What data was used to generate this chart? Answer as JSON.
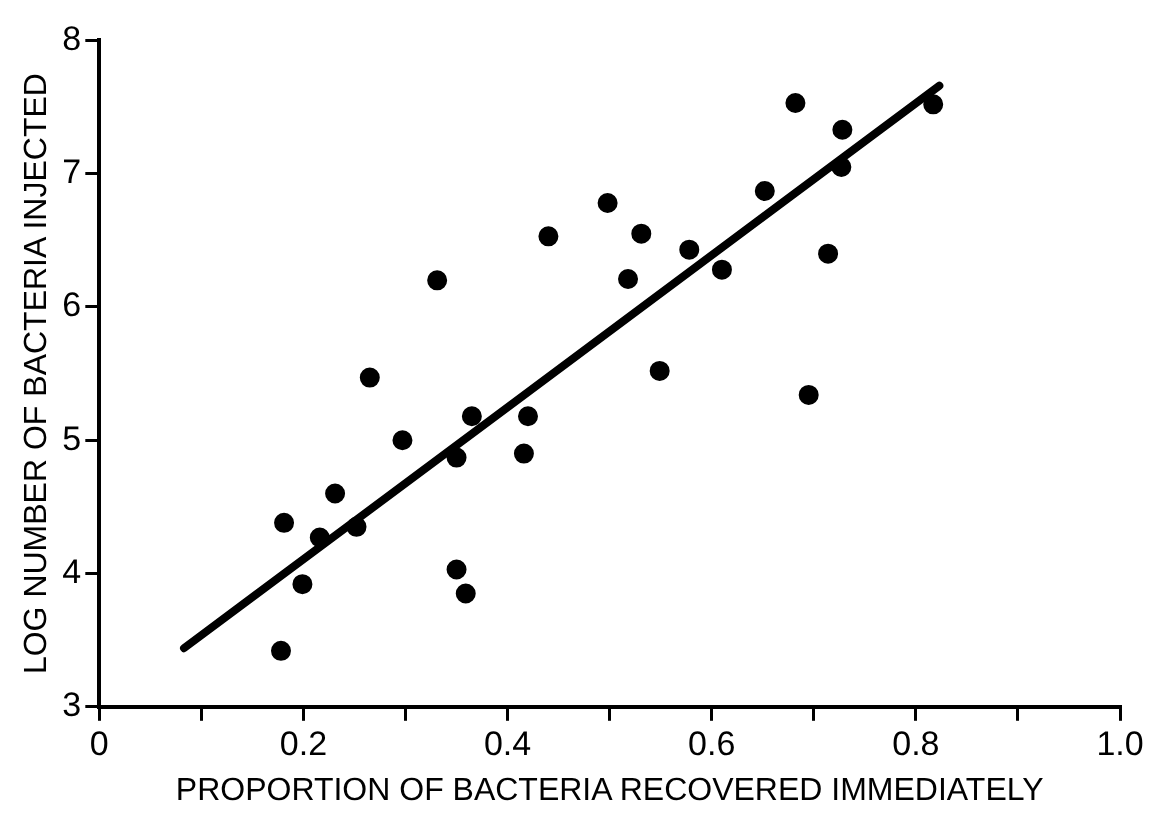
{
  "chart_data": {
    "type": "scatter",
    "xlabel": "PROPORTION OF BACTERIA RECOVERED IMMEDIATELY",
    "ylabel": "LOG NUMBER OF BACTERIA INJECTED",
    "x": [
      0.178,
      0.181,
      0.199,
      0.216,
      0.231,
      0.252,
      0.265,
      0.297,
      0.331,
      0.35,
      0.35,
      0.359,
      0.365,
      0.416,
      0.42,
      0.44,
      0.498,
      0.518,
      0.531,
      0.549,
      0.578,
      0.61,
      0.652,
      0.682,
      0.695,
      0.714,
      0.728,
      0.727,
      0.817
    ],
    "series": [
      {
        "type": "scatter",
        "color": "#000000",
        "marker": "circle",
        "values": [
          3.42,
          4.38,
          3.92,
          4.27,
          4.6,
          4.35,
          5.47,
          5.0,
          6.2,
          4.87,
          4.03,
          3.85,
          5.18,
          4.9,
          5.18,
          6.53,
          6.78,
          6.21,
          6.55,
          5.52,
          6.43,
          6.28,
          6.87,
          7.53,
          5.34,
          6.4,
          7.33,
          7.05,
          7.52
        ]
      },
      {
        "type": "line",
        "color": "#000000",
        "marker": "none",
        "x": [
          0.083,
          0.823
        ],
        "values": [
          3.44,
          7.66
        ]
      }
    ],
    "xlim": [
      0,
      1
    ],
    "ylim": [
      3,
      8
    ],
    "xticks": [
      {
        "value": 0,
        "label": "0"
      },
      {
        "value": 0.1,
        "label": null
      },
      {
        "value": 0.2,
        "label": "0.2"
      },
      {
        "value": 0.3,
        "label": null
      },
      {
        "value": 0.4,
        "label": "0.4"
      },
      {
        "value": 0.5,
        "label": null
      },
      {
        "value": 0.6,
        "label": "0.6"
      },
      {
        "value": 0.7,
        "label": null
      },
      {
        "value": 0.8,
        "label": "0.8"
      },
      {
        "value": 0.9,
        "label": null
      },
      {
        "value": 1.0,
        "label": "1.0"
      }
    ],
    "yticks": [
      3,
      4,
      5,
      6,
      7,
      8
    ],
    "grid": false,
    "legend": false
  }
}
